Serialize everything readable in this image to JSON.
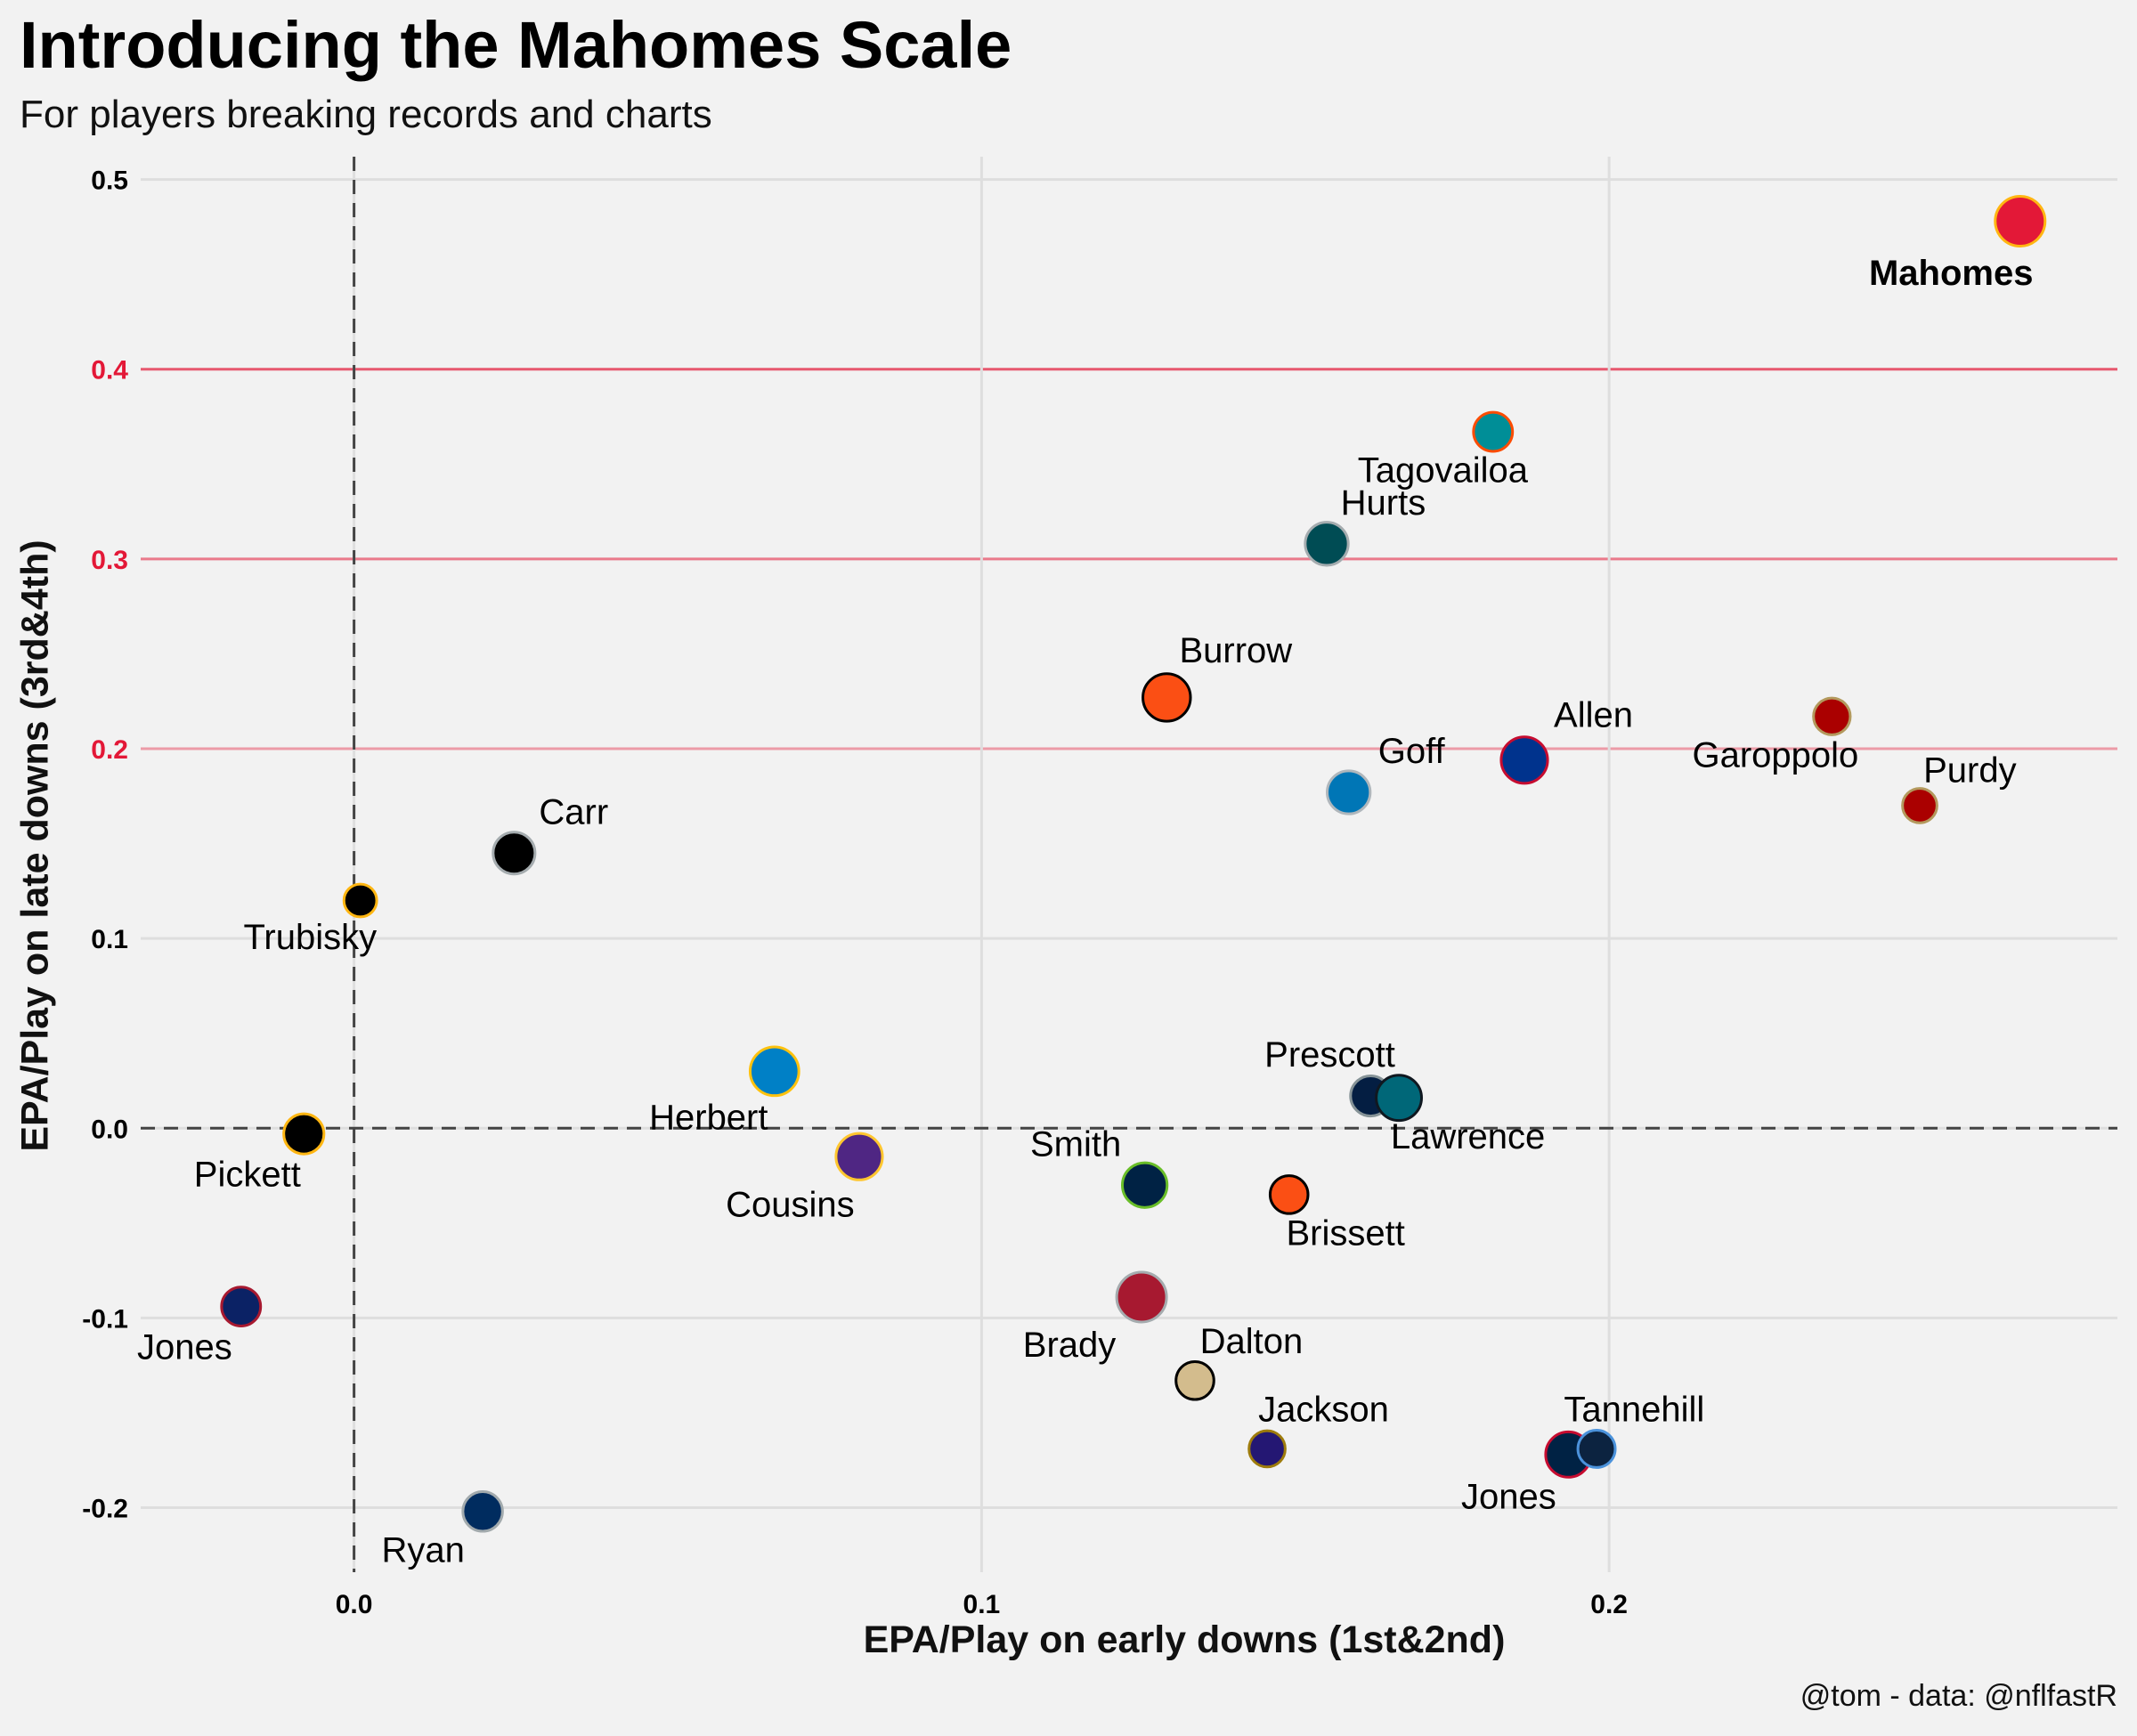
{
  "header": {
    "title": "Introducing the Mahomes Scale",
    "subtitle": "For players breaking records and charts"
  },
  "caption": "@tom - data: @nflfastR",
  "colors": {
    "background": "#f2f2f2",
    "grid": "#dedede",
    "accent": "#e31837",
    "axis": "#000000"
  },
  "chart_data": {
    "type": "scatter",
    "title": "Introducing the Mahomes Scale",
    "subtitle": "For players breaking records and charts",
    "xlabel": "EPA/Play on early downs (1st&2nd)",
    "ylabel": "EPA/Play on late downs (3rd&4th)",
    "xlim": [
      -0.034,
      0.281
    ],
    "ylim": [
      -0.234,
      0.512
    ],
    "x_ticks": [
      {
        "value": 0.0,
        "label": "0.0"
      },
      {
        "value": 0.1,
        "label": "0.1"
      },
      {
        "value": 0.2,
        "label": "0.2"
      }
    ],
    "y_ticks": [
      {
        "value": -0.2,
        "label": "-0.2",
        "color": "#000000"
      },
      {
        "value": -0.1,
        "label": "-0.1",
        "color": "#000000"
      },
      {
        "value": 0.0,
        "label": "0.0",
        "color": "#000000"
      },
      {
        "value": 0.1,
        "label": "0.1",
        "color": "#000000"
      },
      {
        "value": 0.2,
        "label": "0.2",
        "color": "#e31837"
      },
      {
        "value": 0.3,
        "label": "0.3",
        "color": "#e31837"
      },
      {
        "value": 0.4,
        "label": "0.4",
        "color": "#e31837"
      },
      {
        "value": 0.5,
        "label": "0.5",
        "color": "#000000"
      }
    ],
    "reference_lines": {
      "x": 0,
      "y": 0,
      "style": "dashed"
    },
    "grid": true,
    "legend": "none",
    "points": [
      {
        "label": "Mahomes",
        "x": 0.2655,
        "y": 0.478,
        "size": 1.0,
        "fill": "#e31837",
        "stroke": "#ffb612",
        "bold": true,
        "label_dx": -0.011,
        "label_dy": -0.027
      },
      {
        "label": "Tagovailoa",
        "x": 0.1815,
        "y": 0.367,
        "size": 0.62,
        "fill": "#008e97",
        "stroke": "#fc4c02",
        "label_dx": -0.008,
        "label_dy": -0.02
      },
      {
        "label": "Hurts",
        "x": 0.155,
        "y": 0.308,
        "size": 0.76,
        "fill": "#004c54",
        "stroke": "#a5acaf",
        "label_dx": 0.009,
        "label_dy": 0.022
      },
      {
        "label": "Burrow",
        "x": 0.1295,
        "y": 0.227,
        "size": 0.92,
        "fill": "#fb4f14",
        "stroke": "#000000",
        "label_dx": 0.011,
        "label_dy": 0.025
      },
      {
        "label": "Allen",
        "x": 0.1865,
        "y": 0.194,
        "size": 0.88,
        "fill": "#00338d",
        "stroke": "#c60c30",
        "label_dx": 0.011,
        "label_dy": 0.024
      },
      {
        "label": "Goff",
        "x": 0.1585,
        "y": 0.177,
        "size": 0.76,
        "fill": "#0076b6",
        "stroke": "#b0b7bc",
        "label_dx": 0.01,
        "label_dy": 0.022
      },
      {
        "label": "Garoppolo",
        "x": 0.2355,
        "y": 0.217,
        "size": 0.54,
        "fill": "#aa0000",
        "stroke": "#b3995d",
        "label_dx": -0.009,
        "label_dy": -0.02
      },
      {
        "label": "Purdy",
        "x": 0.2495,
        "y": 0.17,
        "size": 0.46,
        "fill": "#aa0000",
        "stroke": "#b3995d",
        "label_dx": 0.008,
        "label_dy": 0.019
      },
      {
        "label": "Carr",
        "x": 0.0255,
        "y": 0.145,
        "size": 0.72,
        "fill": "#000000",
        "stroke": "#a5acaf",
        "label_dx": 0.0095,
        "label_dy": 0.022
      },
      {
        "label": "Trubisky",
        "x": 0.001,
        "y": 0.12,
        "size": 0.4,
        "fill": "#000000",
        "stroke": "#ffb612",
        "label_dx": -0.008,
        "label_dy": -0.019
      },
      {
        "label": "Herbert",
        "x": 0.067,
        "y": 0.03,
        "size": 0.96,
        "fill": "#0080c6",
        "stroke": "#ffc20e",
        "label_dx": -0.0105,
        "label_dy": -0.024
      },
      {
        "label": "Pickett",
        "x": -0.008,
        "y": -0.003,
        "size": 0.66,
        "fill": "#000000",
        "stroke": "#ffb612",
        "label_dx": -0.009,
        "label_dy": -0.021
      },
      {
        "label": "Cousins",
        "x": 0.0805,
        "y": -0.015,
        "size": 0.88,
        "fill": "#4f2683",
        "stroke": "#ffc62f",
        "label_dx": -0.011,
        "label_dy": -0.025
      },
      {
        "label": "Prescott",
        "x": 0.162,
        "y": 0.017,
        "size": 0.66,
        "fill": "#041e42",
        "stroke": "#869397",
        "label_dx": -0.0065,
        "label_dy": 0.022
      },
      {
        "label": "Lawrence",
        "x": 0.1665,
        "y": 0.016,
        "size": 0.84,
        "fill": "#006778",
        "stroke": "#101820",
        "label_dx": 0.011,
        "label_dy": -0.02
      },
      {
        "label": "Smith",
        "x": 0.126,
        "y": -0.03,
        "size": 0.82,
        "fill": "#002244",
        "stroke": "#69be28",
        "label_dx": -0.011,
        "label_dy": 0.022
      },
      {
        "label": "Brissett",
        "x": 0.149,
        "y": -0.035,
        "size": 0.58,
        "fill": "#fb4f14",
        "stroke": "#000000",
        "label_dx": 0.009,
        "label_dy": -0.02
      },
      {
        "label": "Jones",
        "x": -0.018,
        "y": -0.094,
        "size": 0.62,
        "fill": "#0b2265",
        "stroke": "#a71930",
        "label_dx": -0.009,
        "label_dy": -0.021
      },
      {
        "label": "Brady",
        "x": 0.1255,
        "y": -0.089,
        "size": 1.0,
        "fill": "#a71930",
        "stroke": "#a5acaf",
        "label_dx": -0.0115,
        "label_dy": -0.025
      },
      {
        "label": "Dalton",
        "x": 0.134,
        "y": -0.133,
        "size": 0.58,
        "fill": "#d3bc8d",
        "stroke": "#000000",
        "label_dx": 0.009,
        "label_dy": 0.021
      },
      {
        "label": "Jackson",
        "x": 0.1455,
        "y": -0.169,
        "size": 0.52,
        "fill": "#241773",
        "stroke": "#9e7c0c",
        "label_dx": 0.009,
        "label_dy": 0.021
      },
      {
        "label": "Jones",
        "x": 0.1935,
        "y": -0.172,
        "size": 0.84,
        "fill": "#002244",
        "stroke": "#c60c30",
        "label_dx": -0.0095,
        "label_dy": -0.022
      },
      {
        "label": "Tannehill",
        "x": 0.198,
        "y": -0.169,
        "size": 0.56,
        "fill": "#0c2340",
        "stroke": "#4b92db",
        "label_dx": 0.006,
        "label_dy": 0.021
      },
      {
        "label": "Ryan",
        "x": 0.0205,
        "y": -0.202,
        "size": 0.64,
        "fill": "#002c5f",
        "stroke": "#a2aaad",
        "label_dx": -0.0095,
        "label_dy": -0.02
      }
    ]
  }
}
